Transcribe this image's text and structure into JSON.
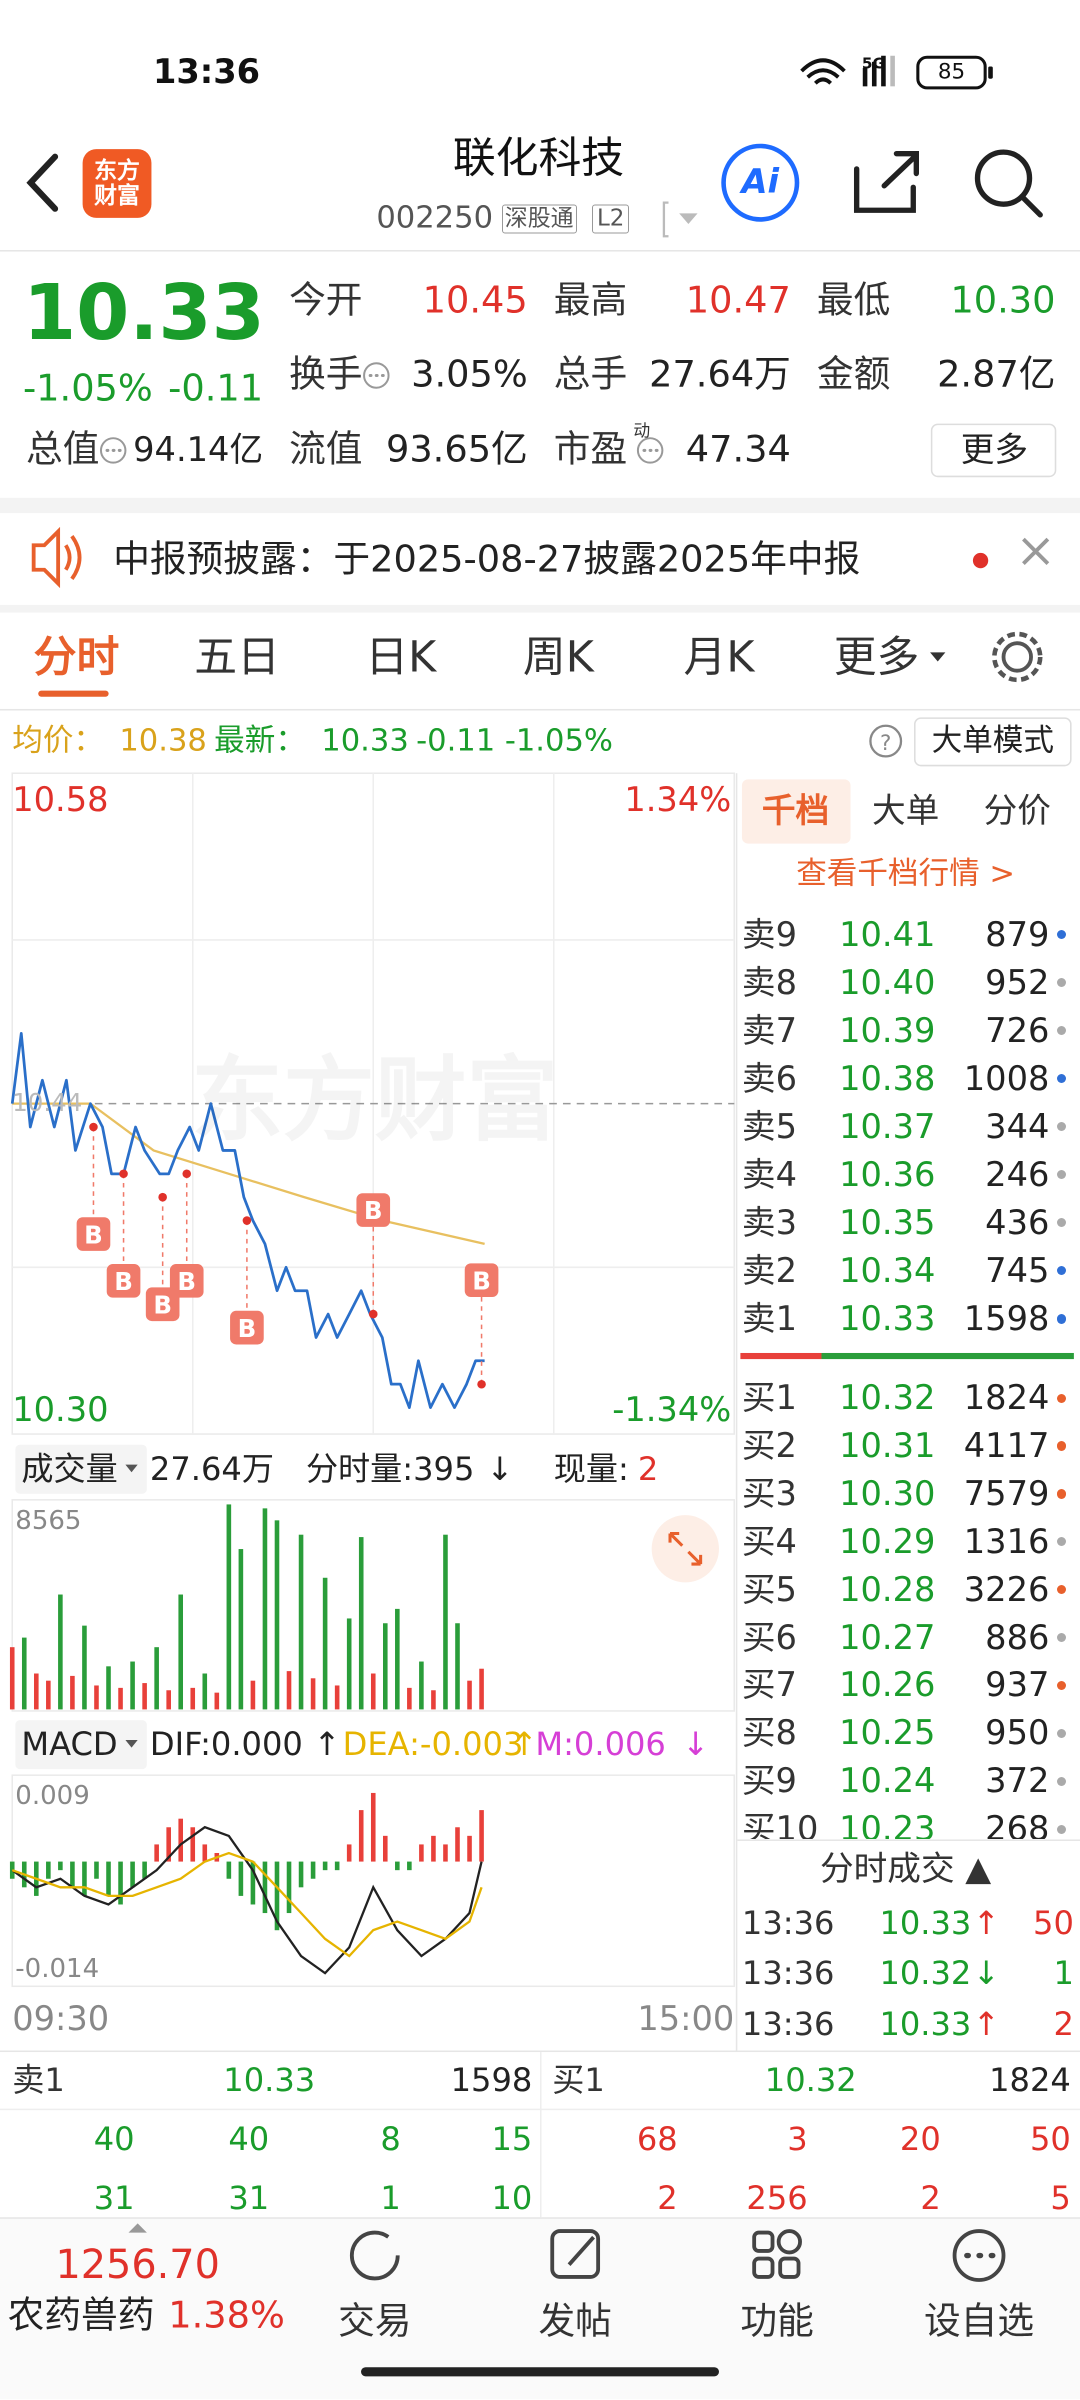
{
  "status": {
    "time": "13:36",
    "network": "5G",
    "battery": "85"
  },
  "header": {
    "logo": "东方财富",
    "title": "联化科技",
    "code": "002250",
    "badges": [
      "深股通",
      "L2"
    ],
    "ai": "Ai"
  },
  "quote": {
    "price": "10.33",
    "pct": "-1.05%",
    "change": "-0.11",
    "more": "更多",
    "rows": [
      [
        {
          "label": "今开",
          "value": "10.45",
          "color": "#e0312a"
        },
        {
          "label": "最高",
          "value": "10.47",
          "color": "#e0312a"
        },
        {
          "label": "最低",
          "value": "10.30",
          "color": "#1a9c2b"
        }
      ],
      [
        {
          "label": "换手",
          "icon": true,
          "value": "3.05%"
        },
        {
          "label": "总手",
          "value": "27.64万"
        },
        {
          "label": "金额",
          "value": "2.87亿"
        }
      ],
      [
        {
          "label": "总值",
          "icon": true,
          "value": "94.14亿"
        },
        {
          "label": "流值",
          "value": "93.65亿"
        },
        {
          "label": "市盈",
          "sup": "动",
          "icon": true,
          "value": "47.34"
        }
      ]
    ]
  },
  "notice": {
    "text": "中报预披露：于2025-08-27披露2025年中报"
  },
  "tabs": {
    "items": [
      "分时",
      "五日",
      "日K",
      "周K",
      "月K",
      "更多"
    ],
    "active": 0
  },
  "info": {
    "avg_label": "均价：",
    "avg": "10.38",
    "last_label": "最新：",
    "last": "10.33",
    "change": "-0.11",
    "pct": "-1.05%",
    "mode": "大单模式"
  },
  "book": {
    "tabs": [
      "千档",
      "大单",
      "分价"
    ],
    "active": 0,
    "link": "查看千档行情 >",
    "asks": [
      {
        "label": "卖9",
        "price": "10.41",
        "volume": "879",
        "dot": "#2f6fd6"
      },
      {
        "label": "卖8",
        "price": "10.40",
        "volume": "952",
        "dot": "#aaaaaa"
      },
      {
        "label": "卖7",
        "price": "10.39",
        "volume": "726",
        "dot": "#aaaaaa"
      },
      {
        "label": "卖6",
        "price": "10.38",
        "volume": "1008",
        "dot": "#2f6fd6"
      },
      {
        "label": "卖5",
        "price": "10.37",
        "volume": "344",
        "dot": "#aaaaaa"
      },
      {
        "label": "卖4",
        "price": "10.36",
        "volume": "246",
        "dot": "#aaaaaa"
      },
      {
        "label": "卖3",
        "price": "10.35",
        "volume": "436",
        "dot": "#aaaaaa"
      },
      {
        "label": "卖2",
        "price": "10.34",
        "volume": "745",
        "dot": "#2f6fd6"
      },
      {
        "label": "卖1",
        "price": "10.33",
        "volume": "1598",
        "dot": "#2f6fd6"
      }
    ],
    "bids": [
      {
        "label": "买1",
        "price": "10.32",
        "volume": "1824",
        "dot": "#e8602c"
      },
      {
        "label": "买2",
        "price": "10.31",
        "volume": "4117",
        "dot": "#e8602c"
      },
      {
        "label": "买3",
        "price": "10.30",
        "volume": "7579",
        "dot": "#e8602c"
      },
      {
        "label": "买4",
        "price": "10.29",
        "volume": "1316",
        "dot": "#aaaaaa"
      },
      {
        "label": "买5",
        "price": "10.28",
        "volume": "3226",
        "dot": "#e8602c"
      },
      {
        "label": "买6",
        "price": "10.27",
        "volume": "886",
        "dot": "#aaaaaa"
      },
      {
        "label": "买7",
        "price": "10.26",
        "volume": "937",
        "dot": "#e8602c"
      },
      {
        "label": "买8",
        "price": "10.25",
        "volume": "950",
        "dot": "#aaaaaa"
      },
      {
        "label": "买9",
        "price": "10.24",
        "volume": "372",
        "dot": "#aaaaaa"
      },
      {
        "label": "买10",
        "price": "10.23",
        "volume": "268",
        "dot": "#aaaaaa"
      }
    ],
    "trades_title": "分时成交 ▲",
    "trades": [
      {
        "time": "13:36",
        "price": "10.33",
        "dir": "↑",
        "dir_color": "#e0312a",
        "volume": "50",
        "vol_color": "#e0312a"
      },
      {
        "time": "13:36",
        "price": "10.32",
        "dir": "↓",
        "dir_color": "#1a9c2b",
        "volume": "1",
        "vol_color": "#1a9c2b"
      },
      {
        "time": "13:36",
        "price": "10.33",
        "dir": "↑",
        "dir_color": "#e0312a",
        "volume": "2",
        "vol_color": "#e0312a"
      }
    ]
  },
  "volume_header": {
    "label": "成交量",
    "total": "27.64万",
    "minute": "分时量:395",
    "minute_arrow": "↓",
    "now_label": "现量:",
    "now": "2"
  },
  "macd_header": {
    "label": "MACD",
    "dif": "DIF:0.000",
    "dif_arrow": "↑",
    "dea": "DEA:-0.003",
    "dea_arrow": "↑",
    "m": "M:0.006",
    "m_arrow": "↓"
  },
  "chart_data": [
    {
      "type": "line",
      "xlim": [
        0,
        240
      ],
      "ylim": [
        10.3,
        10.58
      ],
      "yticks": [
        10.58,
        {
          "value": 10.3,
          "label": "10.30"
        }
      ],
      "pct_ticks": [
        {
          "value": 10.58,
          "label": "1.34%"
        },
        {
          "value": 10.3,
          "label": "-1.34%"
        }
      ],
      "prev_close": {
        "value": 10.44,
        "label": "10.44"
      },
      "watermark": "东方财富",
      "grid": true,
      "x": [
        0,
        3,
        6,
        10,
        14,
        18,
        21,
        26,
        30,
        33,
        37,
        41,
        44,
        49,
        52,
        55,
        59,
        62,
        66,
        70,
        74,
        77,
        80,
        84,
        88,
        91,
        94,
        98,
        101,
        105,
        108,
        112,
        116,
        119,
        123,
        126,
        129,
        132,
        135,
        139,
        143,
        147,
        151,
        154,
        157
      ],
      "series": [
        {
          "color": "#2a6fc9",
          "values": [
            10.44,
            10.47,
            10.43,
            10.45,
            10.43,
            10.45,
            10.42,
            10.44,
            10.43,
            10.41,
            10.41,
            10.43,
            10.42,
            10.41,
            10.41,
            10.42,
            10.43,
            10.42,
            10.44,
            10.42,
            10.42,
            10.4,
            10.39,
            10.38,
            10.36,
            10.37,
            10.36,
            10.36,
            10.34,
            10.35,
            10.34,
            10.35,
            10.36,
            10.35,
            10.34,
            10.32,
            10.32,
            10.31,
            10.33,
            10.31,
            10.32,
            10.31,
            10.32,
            10.33,
            10.33
          ]
        },
        {
          "color": "#e8c060",
          "x": [
            0,
            26,
            47,
            72,
            97,
            123,
            157
          ],
          "values": [
            10.44,
            10.44,
            10.42,
            10.41,
            10.4,
            10.39,
            10.38
          ]
        }
      ],
      "markers": [
        {
          "x": 27,
          "value": 10.43,
          "label": "B"
        },
        {
          "x": 37,
          "value": 10.41,
          "label": "B"
        },
        {
          "x": 50,
          "value": 10.4,
          "label": "B"
        },
        {
          "x": 58,
          "value": 10.41,
          "label": "B"
        },
        {
          "x": 78,
          "value": 10.39,
          "label": "B"
        },
        {
          "x": 120,
          "value": 10.35,
          "label": "B"
        },
        {
          "x": 156,
          "value": 10.32,
          "label": "B"
        }
      ],
      "marker_color": "#f07a6a"
    },
    {
      "type": "bar",
      "xlim": [
        0,
        240
      ],
      "ylim": [
        0,
        8565
      ],
      "yticks": [
        8565
      ],
      "x": [
        0,
        4,
        8,
        12,
        16,
        20,
        24,
        28,
        32,
        36,
        40,
        44,
        48,
        52,
        56,
        60,
        64,
        68,
        72,
        76,
        80,
        84,
        88,
        92,
        96,
        100,
        104,
        108,
        112,
        116,
        120,
        124,
        128,
        132,
        136,
        140,
        144,
        148,
        152,
        156
      ],
      "series": [
        {
          "color": "#e8403a",
          "values": [
            2600,
            null,
            1500,
            1200,
            null,
            1400,
            null,
            1000,
            null,
            900,
            null,
            1100,
            null,
            800,
            null,
            900,
            null,
            700,
            null,
            null,
            1200,
            null,
            null,
            1600,
            null,
            1300,
            null,
            1000,
            null,
            null,
            1500,
            null,
            null,
            900,
            null,
            800,
            null,
            null,
            1200,
            1700
          ]
        },
        {
          "color": "#2a9d3a",
          "values": [
            null,
            3000,
            null,
            null,
            4800,
            null,
            3500,
            null,
            1800,
            null,
            2000,
            null,
            2600,
            null,
            4800,
            null,
            1500,
            null,
            8565,
            6700,
            null,
            8400,
            7900,
            null,
            7300,
            null,
            5500,
            null,
            3800,
            7200,
            null,
            3600,
            4200,
            null,
            2000,
            null,
            7300,
            3600,
            null,
            null
          ]
        }
      ]
    },
    {
      "type": "macd",
      "xlim": [
        0,
        240
      ],
      "xticks": [
        {
          "value": 0,
          "label": "09:30"
        },
        {
          "value": 240,
          "label": "15:00"
        }
      ],
      "ylim": [
        -0.014,
        0.009
      ],
      "yticks": [
        0.009,
        -0.014
      ],
      "up_color": "#e8403a",
      "down_color": "#2a9d3a",
      "x": [
        0,
        4,
        8,
        12,
        16,
        20,
        24,
        28,
        32,
        36,
        40,
        44,
        48,
        52,
        56,
        60,
        64,
        68,
        72,
        76,
        80,
        84,
        88,
        92,
        96,
        100,
        104,
        108,
        112,
        116,
        120,
        124,
        128,
        132,
        136,
        140,
        144,
        148,
        152,
        156
      ],
      "values": [
        -0.002,
        -0.003,
        -0.004,
        -0.002,
        -0.001,
        -0.003,
        -0.004,
        -0.002,
        -0.004,
        -0.005,
        -0.003,
        -0.002,
        0.002,
        0.004,
        0.005,
        0.004,
        0.002,
        0.001,
        -0.002,
        -0.004,
        -0.005,
        -0.006,
        -0.008,
        -0.006,
        -0.003,
        -0.002,
        -0.001,
        -0.001,
        0.002,
        0.006,
        0.008,
        0.003,
        -0.001,
        -0.001,
        0.002,
        0.003,
        0.002,
        0.004,
        0.003,
        0.006
      ],
      "series": [
        {
          "color": "#222222",
          "x": [
            0,
            8,
            16,
            24,
            32,
            40,
            48,
            56,
            64,
            72,
            80,
            88,
            96,
            104,
            112,
            120,
            128,
            136,
            144,
            152,
            156
          ],
          "values": [
            -0.001,
            -0.003,
            -0.002,
            -0.004,
            -0.005,
            -0.003,
            -0.001,
            0.002,
            0.004,
            0.003,
            -0.001,
            -0.007,
            -0.011,
            -0.013,
            -0.01,
            -0.003,
            -0.008,
            -0.011,
            -0.009,
            -0.006,
            0.0
          ]
        },
        {
          "color": "#e6b400",
          "x": [
            0,
            8,
            16,
            24,
            32,
            40,
            48,
            56,
            64,
            72,
            80,
            88,
            96,
            104,
            112,
            120,
            128,
            136,
            144,
            152,
            156
          ],
          "values": [
            -0.001,
            -0.002,
            -0.003,
            -0.003,
            -0.004,
            -0.004,
            -0.003,
            -0.002,
            0.0,
            0.001,
            0.0,
            -0.003,
            -0.006,
            -0.009,
            -0.011,
            -0.008,
            -0.007,
            -0.008,
            -0.009,
            -0.007,
            -0.003
          ]
        }
      ]
    }
  ],
  "level1": {
    "ask": {
      "label": "卖1",
      "price": "10.33",
      "volume": "1598"
    },
    "bid": {
      "label": "买1",
      "price": "10.32",
      "volume": "1824"
    },
    "ask_rows": [
      [
        "40",
        "40",
        "8",
        "15"
      ],
      [
        "31",
        "31",
        "1",
        "10"
      ]
    ],
    "bid_rows": [
      [
        "68",
        "3",
        "20",
        "50"
      ],
      [
        "2",
        "256",
        "2",
        "5"
      ]
    ]
  },
  "nav": {
    "index_value": "1256.70",
    "sector": "农药兽药",
    "sector_pct": "1.38%",
    "items": [
      "交易",
      "发帖",
      "功能",
      "设自选"
    ]
  }
}
